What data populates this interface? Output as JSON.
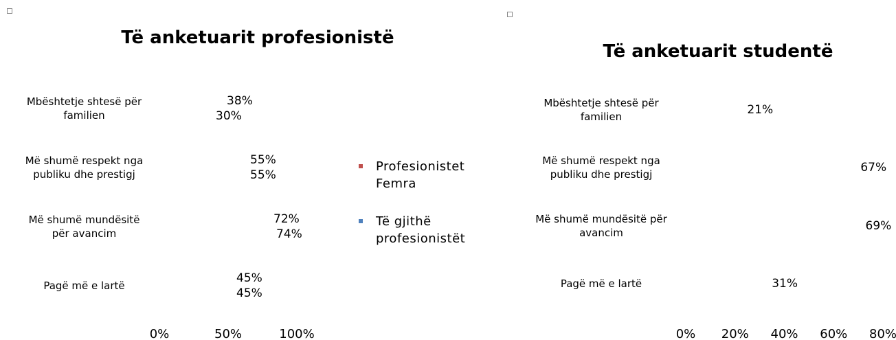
{
  "chart_data": [
    {
      "type": "bar",
      "orientation": "horizontal",
      "title": "Të anketuarit profesionistë",
      "categories": [
        "Mbështetje shtesë për familien",
        "Më shumë respekt nga publiku dhe prestigj",
        "Më shumë mundësitë për avancim",
        "Pagë më e lartë"
      ],
      "series": [
        {
          "name": "Profesionistet Femra",
          "color": "#c0504d",
          "values": [
            38,
            55,
            72,
            45
          ],
          "value_labels": [
            "38%",
            "55%",
            "72%",
            "45%"
          ]
        },
        {
          "name": "Të gjithë profesionistët",
          "color": "#4f81bd",
          "values": [
            30,
            55,
            74,
            45
          ],
          "value_labels": [
            "30%",
            "55%",
            "74%",
            "45%"
          ]
        }
      ],
      "xlim": [
        0,
        100
      ],
      "xticks": [
        {
          "value": 0,
          "label": "0%"
        },
        {
          "value": 50,
          "label": "50%"
        },
        {
          "value": 100,
          "label": "100%"
        }
      ],
      "legend": "right"
    },
    {
      "type": "bar",
      "orientation": "horizontal",
      "title": "Të anketuarit studentë",
      "categories": [
        "Mbështetje shtesë për familien",
        "Më shumë respekt nga publiku dhe prestigj",
        "Më shumë mundësitë për avancim",
        "Pagë më e lartë"
      ],
      "series": [
        {
          "color": "#4f81bd",
          "values": [
            21,
            67,
            69,
            31
          ],
          "value_labels": [
            "21%",
            "67%",
            "69%",
            "31%"
          ]
        }
      ],
      "xlim": [
        0,
        80
      ],
      "xticks": [
        {
          "value": 0,
          "label": "0%"
        },
        {
          "value": 20,
          "label": "20%"
        },
        {
          "value": 40,
          "label": "40%"
        },
        {
          "value": 60,
          "label": "60%"
        },
        {
          "value": 80,
          "label": "80%"
        }
      ]
    }
  ]
}
